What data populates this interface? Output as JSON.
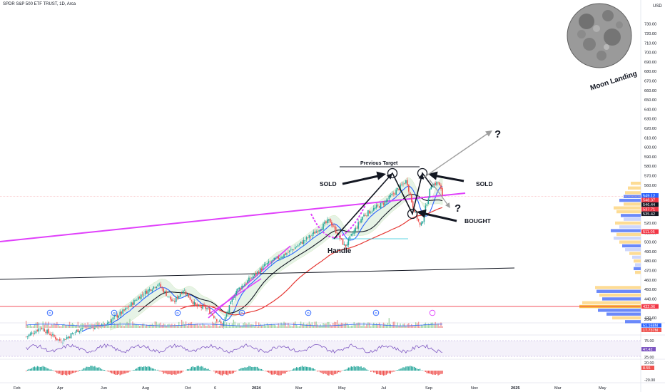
{
  "header": {
    "symbol_line": "SPDR S&P 500 ETF TRUST, 1D, Arca",
    "currency": "USD"
  },
  "colors": {
    "up": "#26a69a",
    "down": "#ef5350",
    "magenta": "#e040fb",
    "blue": "#2962ff",
    "red_ma": "#e53935",
    "black_ma": "#131722",
    "grid": "#f0f3fa",
    "price_line": "#f23645"
  },
  "chart_data": {
    "type": "candlestick",
    "price_axis": {
      "min": 410,
      "max": 730,
      "ticks": [
        420,
        430,
        440,
        450,
        460,
        470,
        480,
        490,
        500,
        510,
        520,
        530,
        540,
        550,
        560,
        570,
        580,
        590,
        600,
        610,
        620,
        630,
        640,
        650,
        660,
        670,
        680,
        690,
        700,
        710,
        720,
        730
      ],
      "tick_labels": [
        "420.00",
        "",
        "440.00",
        "450.00",
        "460.00",
        "470.00",
        "480.00",
        "490.00",
        "500.00",
        "510.00",
        "520.00",
        "530.00",
        "540.00",
        "550.00",
        "560.00",
        "570.00",
        "580.00",
        "590.00",
        "600.00",
        "610.00",
        "620.00",
        "630.00",
        "640.00",
        "650.00",
        "660.00",
        "670.00",
        "680.00",
        "690.00",
        "700.00",
        "710.00",
        "720.00",
        "730.00"
      ]
    },
    "time_axis": [
      "Feb",
      "Apr",
      "Jun",
      "Aug",
      "Oct",
      "6",
      "2024",
      "Mar",
      "May",
      "Jul",
      "Sep",
      "Nov",
      "2025",
      "Mar",
      "May"
    ],
    "price_labels": [
      {
        "text": "549.12",
        "value": 549.12,
        "color": "#2962ff"
      },
      {
        "text": "548.37",
        "value": 548.37,
        "color": "#f23645"
      },
      {
        "text": "546.44",
        "value": 546.44,
        "color": "#131722"
      },
      {
        "text": "537.71",
        "value": 537.71,
        "color": "#f23645"
      },
      {
        "text": "535.42",
        "value": 535.42,
        "color": "#131722"
      },
      {
        "text": "511.05",
        "value": 511.05,
        "color": "#f23645"
      },
      {
        "text": "432.06",
        "value": 432.06,
        "color": "#f23645"
      }
    ],
    "close_path": [
      [
        "2023-01-20",
        400
      ],
      [
        "2023-02-10",
        410
      ],
      [
        "2023-03-10",
        395
      ],
      [
        "2023-04-10",
        410
      ],
      [
        "2023-05-10",
        412
      ],
      [
        "2023-06-10",
        428
      ],
      [
        "2023-07-01",
        443
      ],
      [
        "2023-07-27",
        456
      ],
      [
        "2023-08-18",
        436
      ],
      [
        "2023-09-01",
        450
      ],
      [
        "2023-09-20",
        432
      ],
      [
        "2023-10-05",
        430
      ],
      [
        "2023-10-27",
        412
      ],
      [
        "2023-11-15",
        448
      ],
      [
        "2023-12-01",
        458
      ],
      [
        "2023-12-28",
        476
      ],
      [
        "2024-01-31",
        490
      ],
      [
        "2024-02-29",
        506
      ],
      [
        "2024-03-28",
        523
      ],
      [
        "2024-04-19",
        495
      ],
      [
        "2024-05-15",
        528
      ],
      [
        "2024-06-15",
        542
      ],
      [
        "2024-07-16",
        565
      ],
      [
        "2024-07-24",
        540
      ],
      [
        "2024-08-05",
        515
      ],
      [
        "2024-08-20",
        560
      ],
      [
        "2024-08-30",
        563
      ],
      [
        "2024-09-06",
        548
      ]
    ],
    "annotations": {
      "sold_left": "SOLD",
      "sold_right": "SOLD",
      "bought": "BOUGHT",
      "handle": "Handle",
      "previous_target": "Previous Target",
      "question_up": "?",
      "question_down": "?",
      "moon_label": "Moon Landing"
    },
    "volume_axis": {
      "label_top": "51.168M",
      "label_bottom": "17.737M"
    },
    "rsi_axis": {
      "ticks": [
        "75.00",
        "25.00"
      ],
      "value": "47.42"
    },
    "macd_axis": {
      "ticks": [
        "20.00",
        "-20.00"
      ],
      "value": "8.55"
    },
    "volume_bottom_label": "20M"
  }
}
